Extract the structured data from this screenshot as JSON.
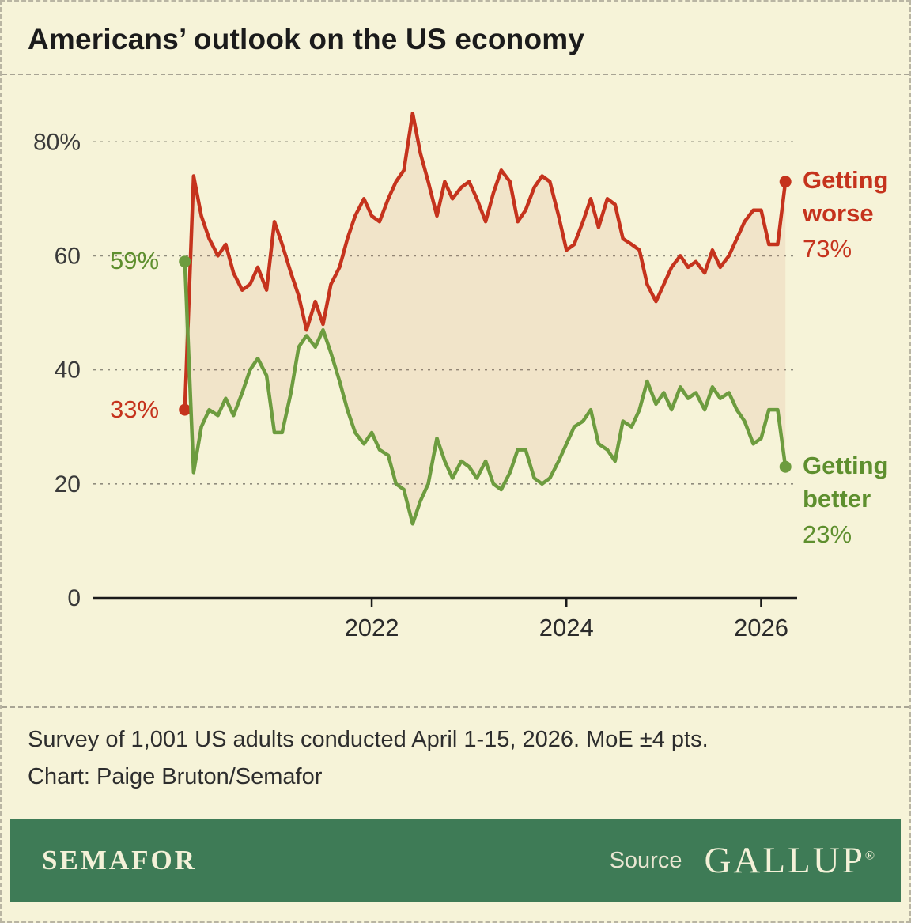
{
  "chart_data": {
    "type": "line",
    "title": "Americans’ outlook on the US economy",
    "x_unit": "decimal_year",
    "xlim": [
      2019.14,
      2026.37
    ],
    "ylim": [
      0,
      86
    ],
    "grid": "dashed-horizontal",
    "legend_position": "right-end-labels",
    "x": [
      2020.08,
      2020.17,
      2020.25,
      2020.33,
      2020.42,
      2020.5,
      2020.58,
      2020.67,
      2020.75,
      2020.83,
      2020.92,
      2021,
      2021.08,
      2021.17,
      2021.25,
      2021.33,
      2021.42,
      2021.5,
      2021.58,
      2021.67,
      2021.75,
      2021.83,
      2021.92,
      2022,
      2022.08,
      2022.17,
      2022.25,
      2022.33,
      2022.42,
      2022.5,
      2022.58,
      2022.67,
      2022.75,
      2022.83,
      2022.92,
      2023,
      2023.08,
      2023.17,
      2023.25,
      2023.33,
      2023.42,
      2023.5,
      2023.58,
      2023.67,
      2023.75,
      2023.83,
      2023.92,
      2024,
      2024.08,
      2024.17,
      2024.25,
      2024.33,
      2024.42,
      2024.5,
      2024.58,
      2024.67,
      2024.75,
      2024.83,
      2024.92,
      2025,
      2025.08,
      2025.17,
      2025.25,
      2025.33,
      2025.42,
      2025.5,
      2025.58,
      2025.67,
      2025.75,
      2025.83,
      2025.92,
      2026,
      2026.08,
      2026.17,
      2026.25
    ],
    "series": [
      {
        "name": "Getting worse",
        "color": "#c5331d",
        "values": [
          33,
          74,
          67,
          63,
          60,
          62,
          57,
          54,
          55,
          58,
          54,
          66,
          62,
          57,
          53,
          47,
          52,
          48,
          55,
          58,
          63,
          67,
          70,
          67,
          66,
          70,
          73,
          75,
          85,
          78,
          73,
          67,
          73,
          70,
          72,
          73,
          70,
          66,
          71,
          75,
          73,
          66,
          68,
          72,
          74,
          73,
          67,
          61,
          62,
          66,
          70,
          65,
          70,
          69,
          63,
          62,
          61,
          55,
          52,
          55,
          58,
          60,
          58,
          59,
          57,
          61,
          58,
          60,
          63,
          66,
          68,
          68,
          62,
          62,
          73
        ]
      },
      {
        "name": "Getting better",
        "color": "#6d9c3f",
        "values": [
          59,
          22,
          30,
          33,
          32,
          35,
          32,
          36,
          40,
          42,
          39,
          29,
          29,
          36,
          44,
          46,
          44,
          47,
          43,
          38,
          33,
          29,
          27,
          29,
          26,
          25,
          20,
          19,
          13,
          17,
          20,
          28,
          24,
          21,
          24,
          23,
          21,
          24,
          20,
          19,
          22,
          26,
          26,
          21,
          20,
          21,
          24,
          27,
          30,
          31,
          33,
          27,
          26,
          24,
          31,
          30,
          33,
          38,
          34,
          36,
          33,
          37,
          35,
          36,
          33,
          37,
          35,
          36,
          33,
          31,
          27,
          28,
          33,
          33,
          23
        ]
      }
    ],
    "yticks": [
      {
        "value": 80,
        "label": "80%"
      },
      {
        "value": 60,
        "label": "60"
      },
      {
        "value": 40,
        "label": "40"
      },
      {
        "value": 20,
        "label": "20"
      },
      {
        "value": 0,
        "label": "0"
      }
    ],
    "xticks": [
      {
        "value": 2022,
        "label": "2022"
      },
      {
        "value": 2024,
        "label": "2024"
      },
      {
        "value": 2026,
        "label": "2026"
      }
    ],
    "annotations": {
      "better_start_label": "59%",
      "worse_start_label": "33%",
      "worse_end_value": "73%",
      "better_end_value": "23%"
    }
  },
  "footnotes": {
    "line1": "Survey of 1,001 US adults conducted April 1-15, 2026. MoE ±4 pts.",
    "line2": "Chart: Paige Bruton/Semafor"
  },
  "footer": {
    "brand": "SEMAFOR",
    "source_label": "Source",
    "source_name": "GALLUP",
    "registered_mark": "®"
  },
  "colors": {
    "background": "#f6f3d8",
    "worse_red": "#c5331d",
    "better_green": "#6d9c3f",
    "better_text_green": "#5e8f2e",
    "footer_bar_green": "#3e7b56",
    "grid_gray": "#8f8c7d",
    "axis_black": "#1a1a1a"
  }
}
